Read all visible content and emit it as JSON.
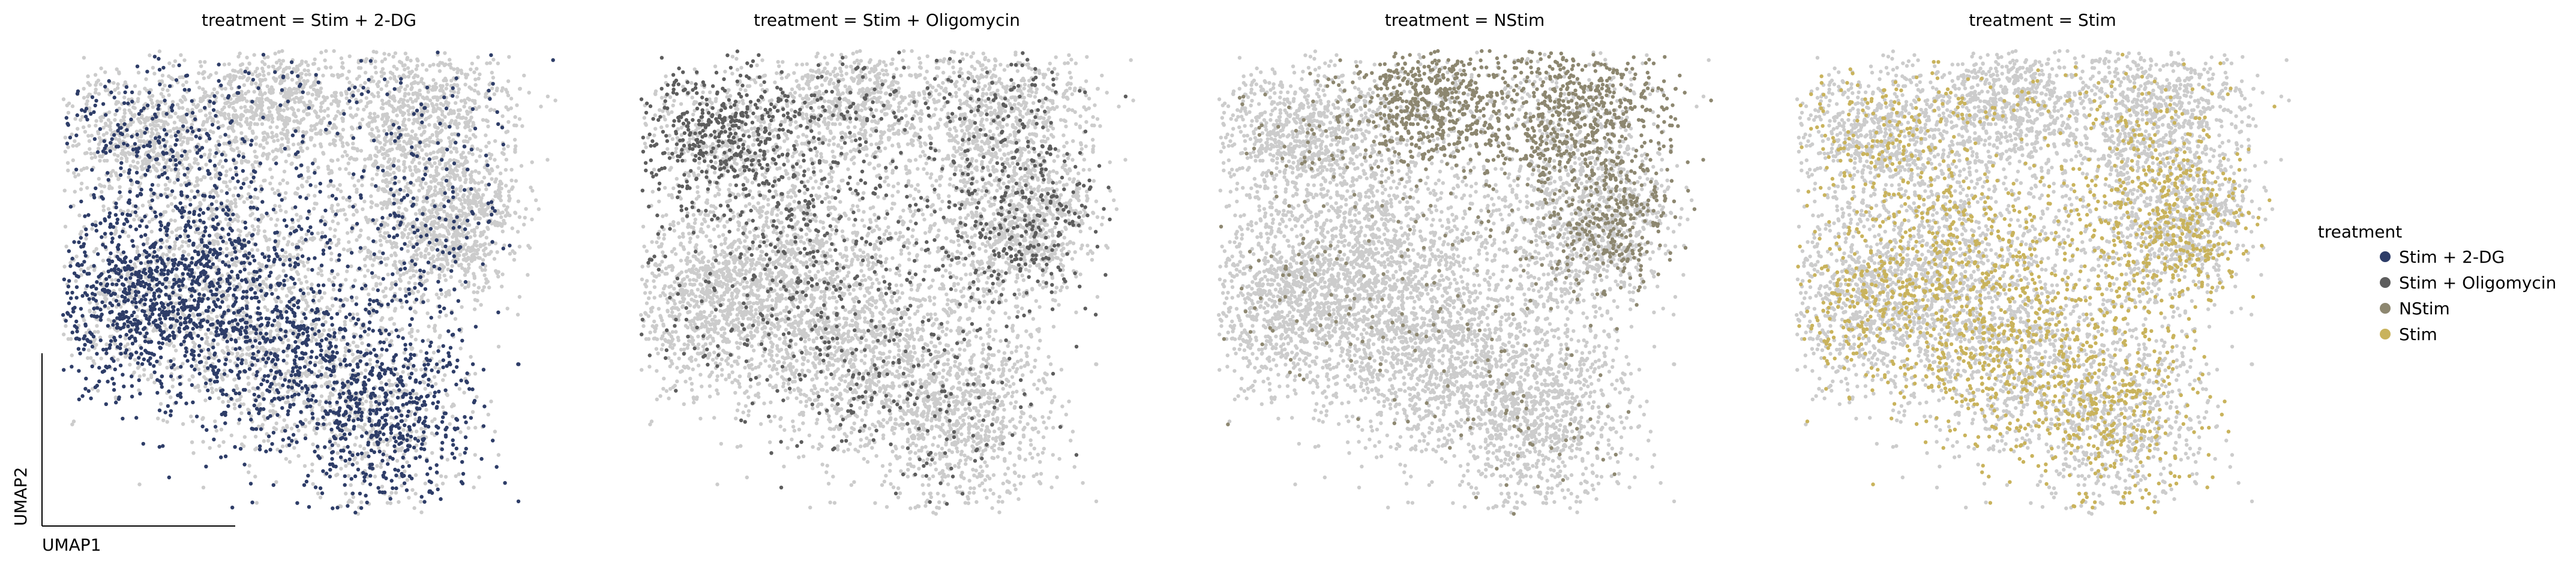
{
  "chart_data": {
    "type": "scatter",
    "embedding": "UMAP",
    "xlabel": "UMAP1",
    "ylabel": "UMAP2",
    "background_color": "#cccccc",
    "legend": {
      "title": "treatment",
      "placement": "right",
      "entries": [
        {
          "label": "Stim + 2-DG",
          "color": "#2e3d68"
        },
        {
          "label": "Stim + Oligomycin",
          "color": "#5d5d5d"
        },
        {
          "label": "NStim",
          "color": "#8d8770"
        },
        {
          "label": "Stim",
          "color": "#c9b35c"
        }
      ]
    },
    "panels": [
      {
        "title": "treatment = Stim + 2-DG",
        "highlight": "Stim + 2-DG",
        "color": "#2e3d68"
      },
      {
        "title": "treatment = Stim + Oligomycin",
        "highlight": "Stim + Oligomycin",
        "color": "#5d5d5d"
      },
      {
        "title": "treatment = NStim",
        "highlight": "NStim",
        "color": "#8d8770"
      },
      {
        "title": "treatment = Stim",
        "highlight": "Stim",
        "color": "#c9b35c"
      }
    ]
  }
}
